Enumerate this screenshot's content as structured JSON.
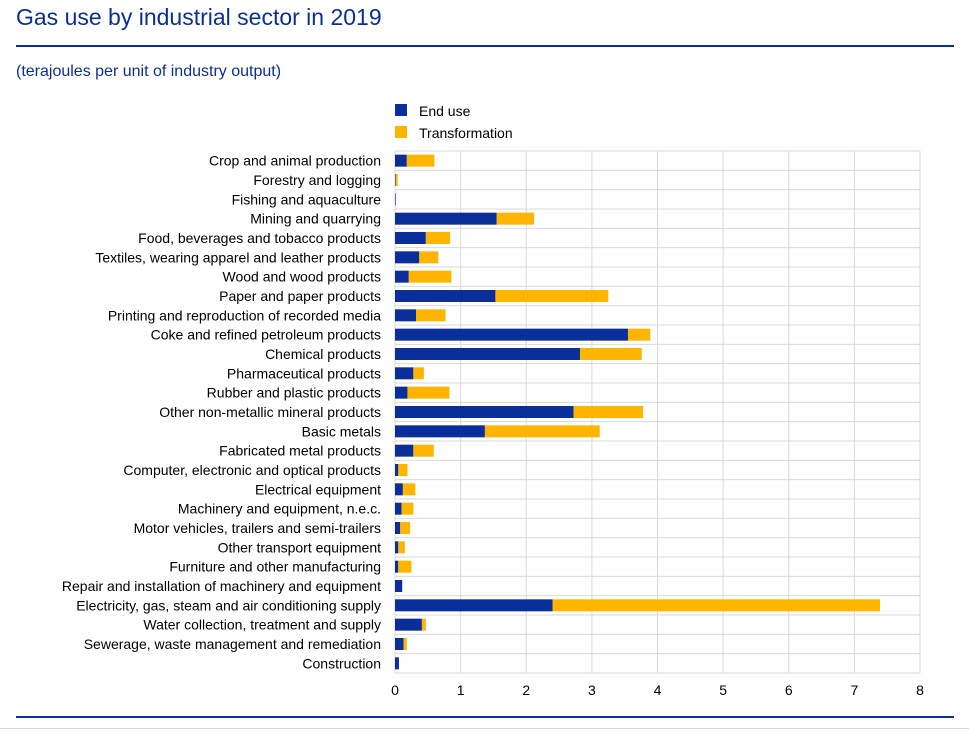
{
  "header": {
    "title": "Gas use by industrial sector in 2019",
    "subtitle": "(terajoules per unit of industry output)"
  },
  "colors": {
    "end_use": "#0a2f9a",
    "transformation": "#ffb400",
    "accent": "#0a2f9a",
    "grid": "#d9d9d9"
  },
  "chart_data": {
    "type": "bar",
    "orientation": "horizontal",
    "stacked": true,
    "title": "Gas use by industrial sector in 2019",
    "subtitle": "(terajoules per unit of industry output)",
    "xlabel": "",
    "ylabel": "",
    "xlim": [
      0,
      8
    ],
    "x_ticks": [
      "0",
      "1",
      "2",
      "3",
      "4",
      "5",
      "6",
      "7",
      "8"
    ],
    "grid": true,
    "legend_position": "top",
    "categories": [
      "Crop and animal production",
      "Forestry and logging",
      "Fishing and aquaculture",
      "Mining and quarrying",
      "Food, beverages and tobacco products",
      "Textiles, wearing apparel and leather products",
      "Wood and wood products",
      "Paper and paper products",
      "Printing and reproduction of recorded media",
      "Coke and refined petroleum products",
      "Chemical products",
      "Pharmaceutical products",
      "Rubber and plastic products",
      "Other non-metallic mineral products",
      "Basic metals",
      "Fabricated metal products",
      "Computer, electronic and optical products",
      "Electrical equipment",
      "Machinery and equipment, n.e.c.",
      "Motor vehicles, trailers and semi-trailers",
      "Other transport equipment",
      "Furniture and other manufacturing",
      "Repair and installation of machinery and equipment",
      "Electricity, gas, steam and air conditioning supply",
      "Water collection, treatment and supply",
      "Sewerage, waste management and remediation",
      "Construction"
    ],
    "series": [
      {
        "name": "End use",
        "values": [
          0.18,
          0.01,
          0.01,
          1.55,
          0.47,
          0.37,
          0.21,
          1.53,
          0.32,
          3.55,
          2.82,
          0.28,
          0.19,
          2.72,
          1.37,
          0.28,
          0.05,
          0.12,
          0.1,
          0.08,
          0.05,
          0.05,
          0.11,
          2.4,
          0.41,
          0.13,
          0.06
        ]
      },
      {
        "name": "Transformation",
        "values": [
          0.42,
          0.03,
          0.0,
          0.57,
          0.37,
          0.29,
          0.65,
          1.72,
          0.45,
          0.34,
          0.94,
          0.16,
          0.64,
          1.06,
          1.75,
          0.31,
          0.14,
          0.19,
          0.18,
          0.15,
          0.1,
          0.2,
          0.0,
          4.99,
          0.06,
          0.05,
          0.0
        ]
      }
    ]
  }
}
